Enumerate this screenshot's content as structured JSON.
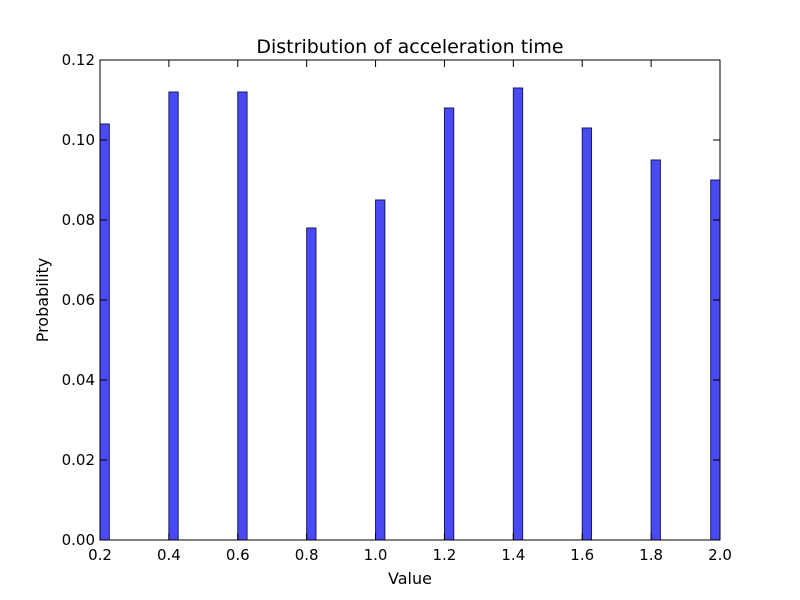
{
  "chart_data": {
    "type": "bar",
    "title": "Distribution of acceleration time",
    "xlabel": "Value",
    "ylabel": "Probability",
    "xlim": [
      0.2,
      2.0
    ],
    "ylim": [
      0.0,
      0.12
    ],
    "x_ticks": [
      "0.2",
      "0.4",
      "0.6",
      "0.8",
      "1.0",
      "1.2",
      "1.4",
      "1.6",
      "1.8",
      "2.0"
    ],
    "y_ticks": [
      "0.00",
      "0.02",
      "0.04",
      "0.06",
      "0.08",
      "0.10",
      "0.12"
    ],
    "bar_width": 0.027,
    "x": [
      0.2135,
      0.4135,
      0.6135,
      0.8135,
      1.0135,
      1.2135,
      1.4135,
      1.6135,
      1.8135,
      1.9865
    ],
    "values": [
      0.104,
      0.112,
      0.112,
      0.078,
      0.085,
      0.108,
      0.113,
      0.103,
      0.095,
      0.09
    ],
    "grid": false,
    "colors": {
      "bar_fill": "#4a4af5",
      "bar_edge": "#1a1a66"
    }
  }
}
